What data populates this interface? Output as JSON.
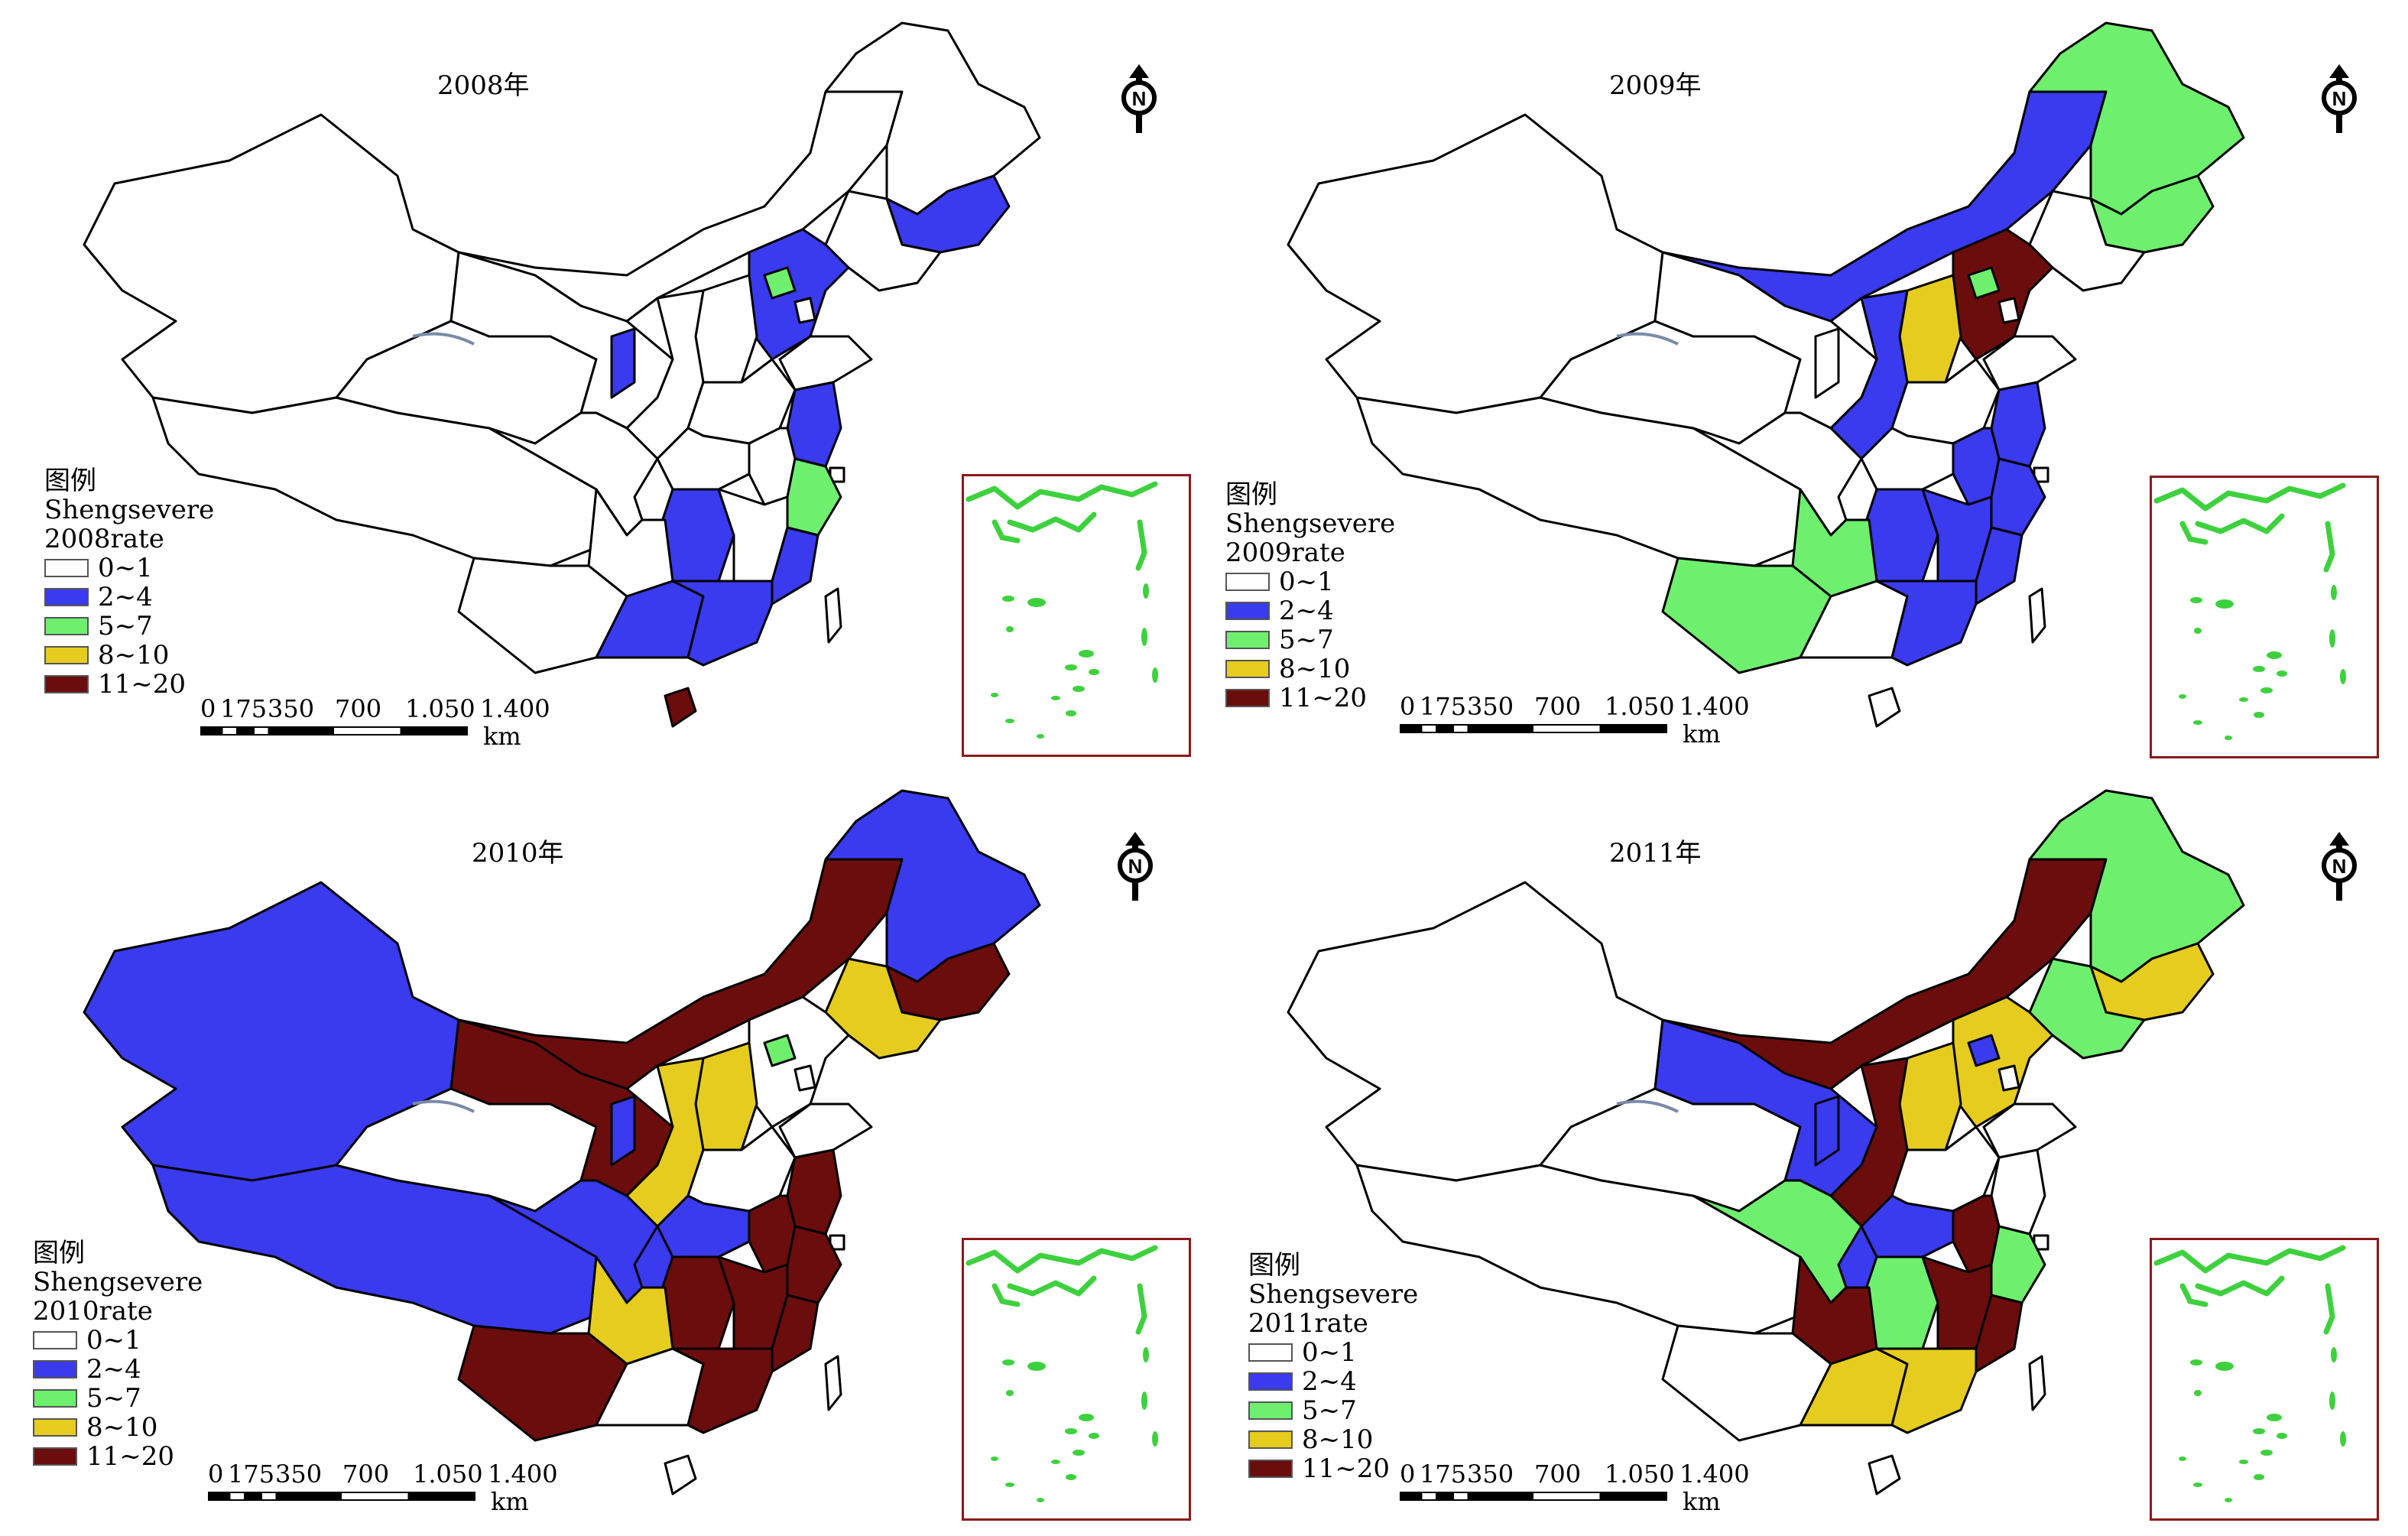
{
  "panels": [
    {
      "title": "2008年",
      "legend_heading": "图例",
      "legend_field": "Shengsevere",
      "legend_rate": "2008rate"
    },
    {
      "title": "2009年",
      "legend_heading": "图例",
      "legend_field": "Shengsevere",
      "legend_rate": "2009rate"
    },
    {
      "title": "2010年",
      "legend_heading": "图例",
      "legend_field": "Shengsevere",
      "legend_rate": "2010rate"
    },
    {
      "title": "2011年",
      "legend_heading": "图例",
      "legend_field": "Shengsevere",
      "legend_rate": "2011rate"
    }
  ],
  "legend_classes": [
    {
      "label": "0~1",
      "color": "#ffffff"
    },
    {
      "label": "2~4",
      "color": "#3a3aee"
    },
    {
      "label": "5~7",
      "color": "#6ef06e"
    },
    {
      "label": "8~10",
      "color": "#e6cc1e"
    },
    {
      "label": "11~20",
      "color": "#6b0d0d"
    }
  ],
  "scale": {
    "ticks": [
      "0",
      "175",
      "350",
      "700",
      "1.050",
      "1.400"
    ],
    "unit": "km"
  },
  "north_arrow": {
    "label": "N",
    "icon": "north-arrow-icon"
  },
  "inset_outline_color": "#8b1a1a",
  "inset_island_color": "#3ed13e"
}
